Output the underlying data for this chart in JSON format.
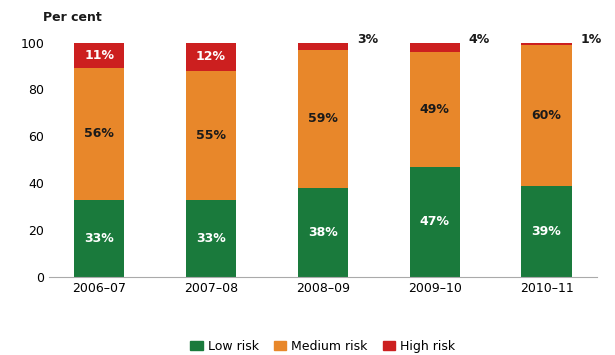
{
  "categories": [
    "2006–07",
    "2007–08",
    "2008–09",
    "2009–10",
    "2010–11"
  ],
  "low_risk": [
    33,
    33,
    38,
    47,
    39
  ],
  "medium_risk": [
    56,
    55,
    59,
    49,
    60
  ],
  "high_risk": [
    11,
    12,
    3,
    4,
    1
  ],
  "low_color": "#1a7a3c",
  "medium_color": "#e8872a",
  "high_color": "#cc1f1f",
  "top_label": "Per cent",
  "ylim": [
    0,
    100
  ],
  "yticks": [
    0,
    20,
    40,
    60,
    80,
    100
  ],
  "legend_labels": [
    "Low risk",
    "Medium risk",
    "High risk"
  ],
  "bar_width": 0.45,
  "label_fontsize": 9,
  "axis_fontsize": 9,
  "bg_color": "#ffffff",
  "high_threshold": 5
}
